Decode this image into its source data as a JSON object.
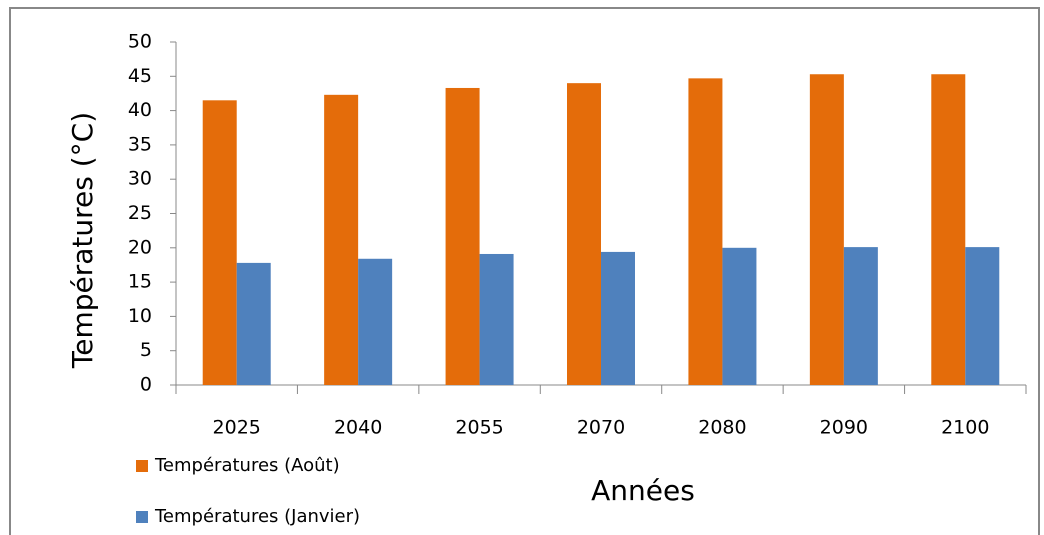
{
  "chart_data": {
    "type": "bar",
    "categories": [
      "2025",
      "2040",
      "2055",
      "2070",
      "2080",
      "2090",
      "2100"
    ],
    "series": [
      {
        "name": "Températures (Août)",
        "color": "#e46c0a",
        "values": [
          41.5,
          42.3,
          43.3,
          44.0,
          44.7,
          45.3,
          45.3
        ]
      },
      {
        "name": "Températures (Janvier)",
        "color": "#4f81bd",
        "values": [
          17.8,
          18.4,
          19.1,
          19.4,
          20.0,
          20.1,
          20.1
        ]
      }
    ],
    "x_label": "Années",
    "y_label": "Températures  (°C)",
    "ylim": [
      0,
      50
    ],
    "yticks": [
      0,
      5,
      10,
      15,
      20,
      25,
      30,
      35,
      40,
      45,
      50
    ]
  }
}
